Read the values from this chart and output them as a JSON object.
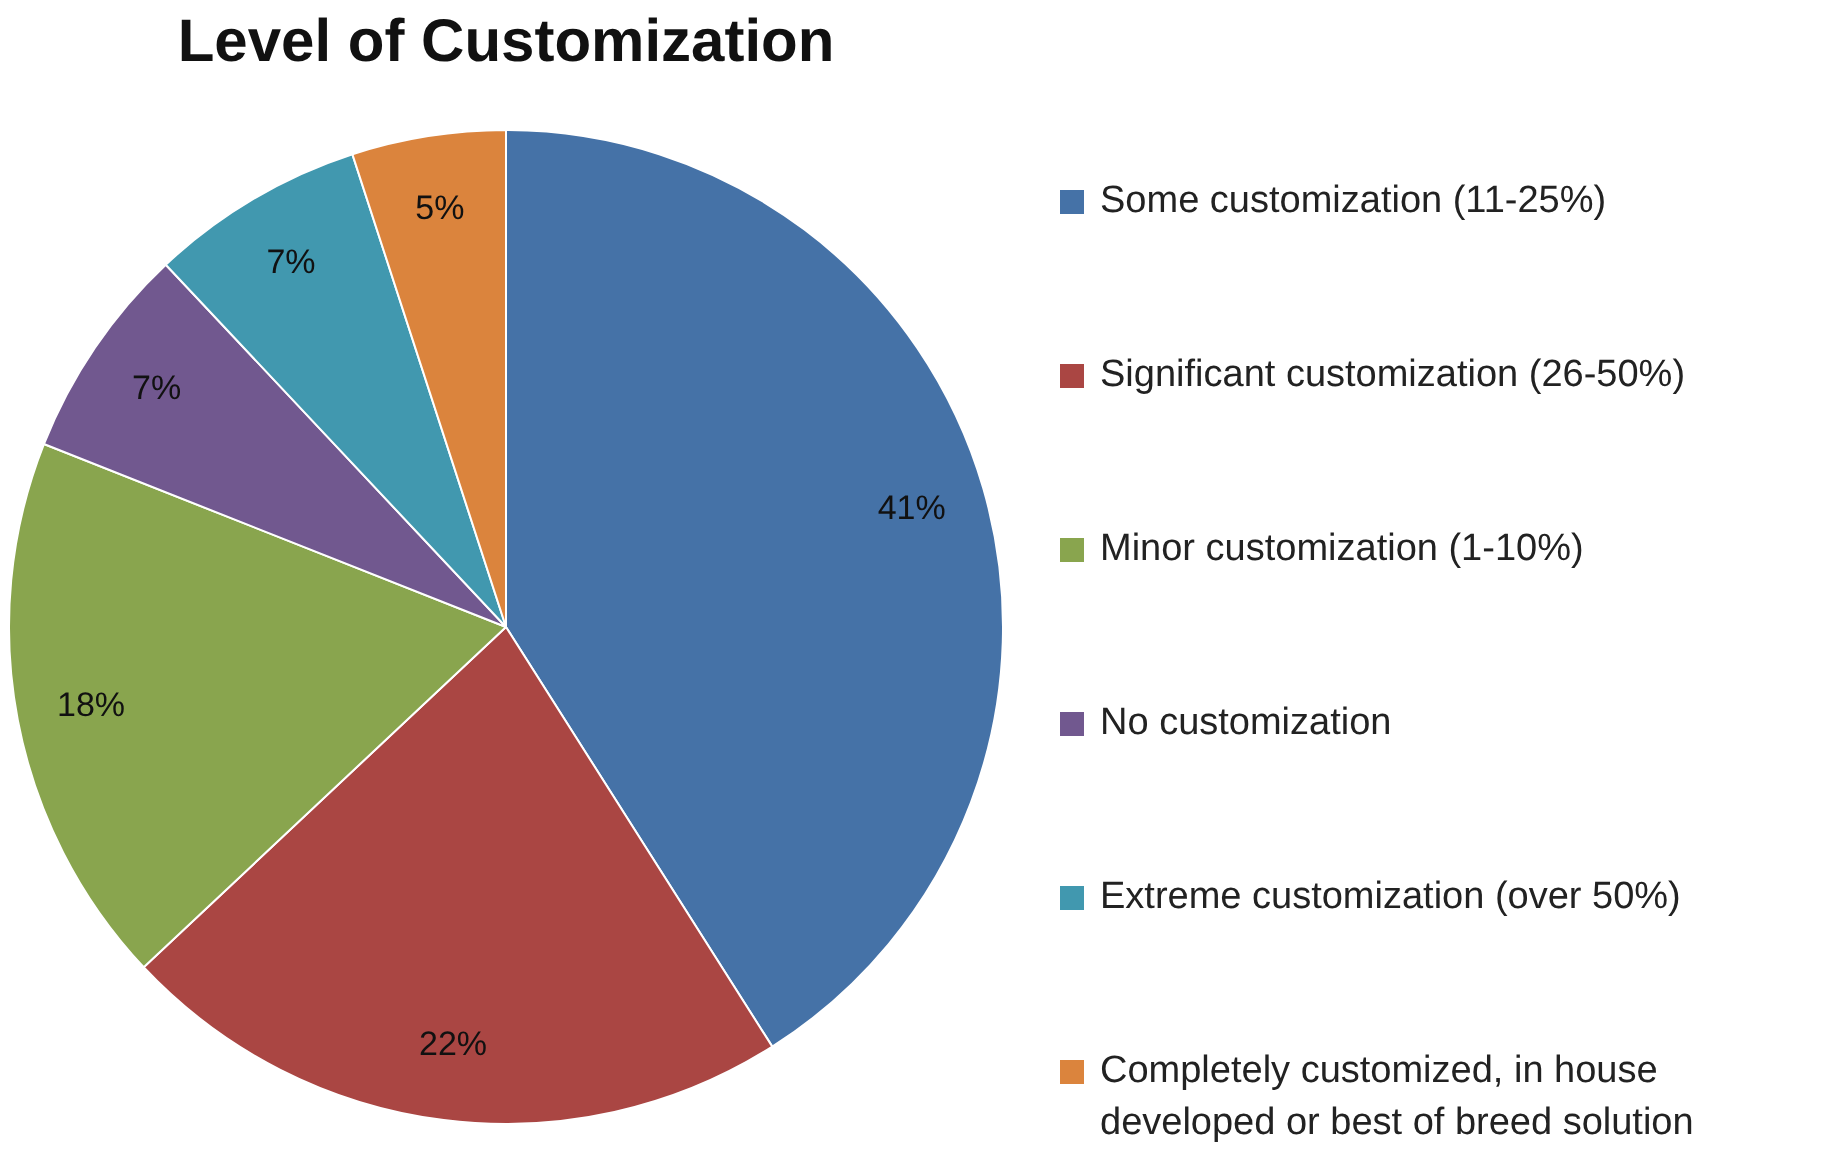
{
  "chart_data": {
    "type": "pie",
    "title": "Level of Customization",
    "categories": [
      "Some customization (11-25%)",
      "Significant customization (26-50%)",
      "Minor customization (1-10%)",
      "No customization",
      "Extreme customization (over 50%)",
      "Completely customized, in house developed or best of breed solution"
    ],
    "values": [
      41,
      22,
      18,
      7,
      7,
      5
    ],
    "colors": [
      "#4572a7",
      "#aa4643",
      "#89a54e",
      "#71588f",
      "#4198af",
      "#db843d"
    ],
    "value_labels": [
      "41%",
      "22%",
      "18%",
      "7%",
      "7%",
      "5%"
    ],
    "legend": "right"
  }
}
